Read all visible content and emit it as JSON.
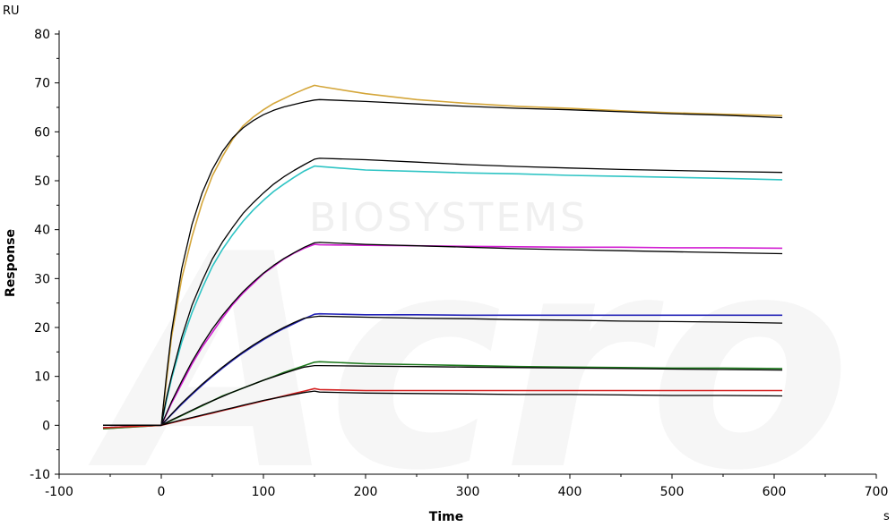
{
  "watermark": {
    "logo": "Acro",
    "text": "BIOSYSTEMS"
  },
  "chart_data": {
    "type": "line",
    "title": "",
    "xlabel": "Time",
    "ylabel": "Response",
    "x_unit": "s",
    "y_unit": "RU",
    "xlim": [
      -100,
      700
    ],
    "ylim": [
      -10,
      80
    ],
    "x_ticks": [
      -100,
      0,
      100,
      200,
      300,
      400,
      500,
      600,
      700
    ],
    "y_ticks": [
      -10,
      0,
      10,
      20,
      30,
      40,
      50,
      60,
      70,
      80
    ],
    "grid": false,
    "legend": "none",
    "series": [
      {
        "color": "#d4a63a",
        "x": [
          -57,
          0,
          5,
          10,
          20,
          30,
          40,
          50,
          60,
          70,
          80,
          90,
          100,
          110,
          120,
          130,
          140,
          150,
          155,
          200,
          250,
          300,
          350,
          400,
          450,
          500,
          550,
          608
        ],
        "y": [
          -0.7,
          0,
          9,
          18,
          30,
          38.5,
          45.5,
          51,
          55,
          58.5,
          61.2,
          63,
          64.5,
          65.8,
          66.8,
          67.8,
          68.7,
          69.5,
          69.3,
          67.8,
          66.6,
          65.8,
          65.2,
          64.8,
          64.3,
          63.9,
          63.6,
          63.3
        ]
      },
      {
        "color": "#000000",
        "x": [
          -57,
          0,
          5,
          10,
          20,
          30,
          40,
          50,
          60,
          70,
          80,
          90,
          100,
          110,
          120,
          130,
          140,
          150,
          155,
          200,
          250,
          300,
          350,
          400,
          450,
          500,
          550,
          608
        ],
        "y": [
          0,
          0,
          10,
          19,
          32,
          41,
          47.5,
          52.3,
          56,
          58.8,
          60.8,
          62.3,
          63.5,
          64.4,
          65.1,
          65.6,
          66.1,
          66.5,
          66.6,
          66.2,
          65.7,
          65.2,
          64.8,
          64.5,
          64.1,
          63.7,
          63.4,
          62.9
        ]
      },
      {
        "color": "#2ec4c4",
        "x": [
          -57,
          0,
          5,
          10,
          20,
          30,
          40,
          50,
          60,
          70,
          80,
          90,
          100,
          110,
          120,
          130,
          140,
          150,
          155,
          200,
          250,
          300,
          350,
          400,
          450,
          500,
          550,
          608
        ],
        "y": [
          -0.5,
          0,
          5,
          9.5,
          17,
          23,
          28,
          32.5,
          36,
          39,
          41.7,
          44,
          46,
          47.8,
          49.3,
          50.7,
          52,
          53,
          52.9,
          52.2,
          51.9,
          51.6,
          51.4,
          51.1,
          50.9,
          50.7,
          50.5,
          50.2
        ]
      },
      {
        "color": "#000000",
        "x": [
          -57,
          0,
          5,
          10,
          20,
          30,
          40,
          50,
          60,
          70,
          80,
          90,
          100,
          110,
          120,
          130,
          140,
          150,
          155,
          200,
          250,
          300,
          350,
          400,
          450,
          500,
          550,
          608
        ],
        "y": [
          0,
          0,
          5.5,
          10,
          18,
          24.5,
          29.5,
          34,
          37.5,
          40.5,
          43.3,
          45.5,
          47.5,
          49.3,
          50.8,
          52.1,
          53.3,
          54.4,
          54.6,
          54.3,
          53.8,
          53.3,
          52.9,
          52.6,
          52.3,
          52.1,
          51.9,
          51.7
        ]
      },
      {
        "color": "#d21fd2",
        "x": [
          -57,
          0,
          10,
          20,
          30,
          40,
          50,
          60,
          70,
          80,
          90,
          100,
          110,
          120,
          130,
          140,
          150,
          155,
          200,
          250,
          300,
          350,
          400,
          450,
          500,
          550,
          608
        ],
        "y": [
          -0.5,
          0,
          4.5,
          8.5,
          12.5,
          16,
          19,
          22,
          24.7,
          27,
          29,
          31,
          32.5,
          34,
          35.2,
          36.2,
          37,
          36.9,
          36.8,
          36.7,
          36.6,
          36.5,
          36.4,
          36.4,
          36.3,
          36.3,
          36.2
        ]
      },
      {
        "color": "#000000",
        "x": [
          -57,
          0,
          10,
          20,
          30,
          40,
          50,
          60,
          70,
          80,
          90,
          100,
          110,
          120,
          130,
          140,
          150,
          155,
          200,
          250,
          300,
          350,
          400,
          450,
          500,
          550,
          608
        ],
        "y": [
          0,
          0,
          4.8,
          9,
          13,
          16.5,
          19.7,
          22.5,
          25,
          27.3,
          29.3,
          31.1,
          32.7,
          34.1,
          35.3,
          36.4,
          37.3,
          37.4,
          37,
          36.7,
          36.4,
          36.1,
          35.9,
          35.7,
          35.5,
          35.3,
          35.1
        ]
      },
      {
        "color": "#2525b8",
        "x": [
          -57,
          0,
          10,
          20,
          30,
          40,
          50,
          60,
          70,
          80,
          90,
          100,
          110,
          120,
          130,
          140,
          150,
          155,
          200,
          250,
          300,
          350,
          400,
          450,
          500,
          550,
          608
        ],
        "y": [
          -0.5,
          0,
          2.2,
          4.3,
          6.3,
          8.2,
          10,
          11.7,
          13.3,
          14.8,
          16.2,
          17.5,
          18.7,
          19.8,
          20.8,
          21.8,
          22.7,
          22.8,
          22.6,
          22.6,
          22.5,
          22.5,
          22.5,
          22.5,
          22.5,
          22.5,
          22.5
        ]
      },
      {
        "color": "#000000",
        "x": [
          -57,
          0,
          10,
          20,
          30,
          40,
          50,
          60,
          70,
          80,
          90,
          100,
          110,
          120,
          130,
          140,
          150,
          155,
          200,
          250,
          300,
          350,
          400,
          450,
          500,
          550,
          608
        ],
        "y": [
          0,
          0,
          2.3,
          4.5,
          6.5,
          8.4,
          10.2,
          11.9,
          13.5,
          15,
          16.4,
          17.7,
          18.9,
          20,
          21,
          21.9,
          22.2,
          22.3,
          22.1,
          21.9,
          21.8,
          21.6,
          21.5,
          21.3,
          21.2,
          21.1,
          20.9
        ]
      },
      {
        "color": "#1f7a1f",
        "x": [
          -57,
          0,
          10,
          20,
          30,
          40,
          50,
          60,
          70,
          80,
          90,
          100,
          110,
          120,
          130,
          140,
          150,
          155,
          200,
          250,
          300,
          350,
          400,
          450,
          500,
          550,
          608
        ],
        "y": [
          -0.7,
          0,
          1,
          2,
          3,
          4,
          5,
          6,
          6.8,
          7.6,
          8.4,
          9.2,
          10,
          10.8,
          11.5,
          12.2,
          12.9,
          13,
          12.6,
          12.4,
          12.2,
          12,
          11.9,
          11.8,
          11.7,
          11.7,
          11.6
        ]
      },
      {
        "color": "#000000",
        "x": [
          -57,
          0,
          10,
          20,
          30,
          40,
          50,
          60,
          70,
          80,
          90,
          100,
          110,
          120,
          130,
          140,
          150,
          155,
          200,
          250,
          300,
          350,
          400,
          450,
          500,
          550,
          608
        ],
        "y": [
          0,
          0,
          1.1,
          2.1,
          3.1,
          4.1,
          5,
          5.9,
          6.8,
          7.6,
          8.4,
          9.2,
          9.9,
          10.6,
          11.3,
          11.9,
          12.2,
          12.2,
          12.1,
          12,
          11.9,
          11.8,
          11.7,
          11.6,
          11.5,
          11.4,
          11.3
        ]
      },
      {
        "color": "#d42020",
        "x": [
          -57,
          0,
          10,
          20,
          30,
          40,
          50,
          60,
          70,
          80,
          90,
          100,
          110,
          120,
          130,
          140,
          150,
          155,
          200,
          250,
          300,
          350,
          400,
          450,
          500,
          550,
          608
        ],
        "y": [
          -0.5,
          0,
          0.5,
          1,
          1.5,
          2,
          2.5,
          3,
          3.5,
          4,
          4.5,
          5,
          5.5,
          6,
          6.5,
          7,
          7.5,
          7.3,
          7.1,
          7.1,
          7.1,
          7.1,
          7.1,
          7.1,
          7.1,
          7.1,
          7.1
        ]
      },
      {
        "color": "#000000",
        "x": [
          -57,
          0,
          10,
          20,
          30,
          40,
          50,
          60,
          70,
          80,
          90,
          100,
          110,
          120,
          130,
          140,
          150,
          155,
          200,
          250,
          300,
          350,
          400,
          450,
          500,
          550,
          608
        ],
        "y": [
          0,
          0,
          0.55,
          1.1,
          1.6,
          2.1,
          2.6,
          3.1,
          3.6,
          4.1,
          4.6,
          5.1,
          5.5,
          5.9,
          6.3,
          6.7,
          7,
          6.8,
          6.6,
          6.5,
          6.4,
          6.3,
          6.3,
          6.2,
          6.1,
          6.1,
          6
        ]
      }
    ]
  }
}
